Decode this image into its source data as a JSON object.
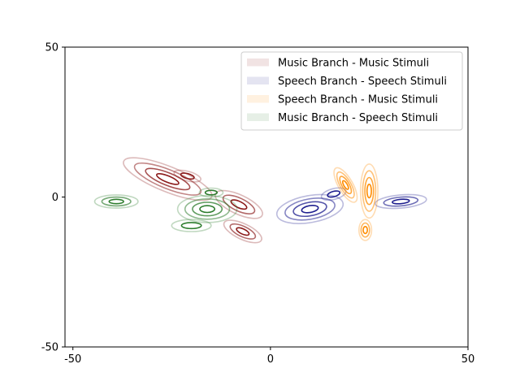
{
  "chart_data": {
    "type": "contour",
    "title": "",
    "xlabel": "",
    "ylabel": "",
    "xlim": [
      -52,
      50
    ],
    "ylim": [
      -50,
      50
    ],
    "xticks": [
      -50,
      0,
      50
    ],
    "yticks": [
      -50,
      0,
      50
    ],
    "xtick_labels": [
      "-50",
      "0",
      "50"
    ],
    "ytick_labels": [
      "-50",
      "0",
      "50"
    ],
    "grid": false,
    "legend_position": "top-right",
    "series": [
      {
        "name": "Music Branch - Music Stimuli",
        "color": "#8b1a1a",
        "clusters": [
          {
            "cx": -26,
            "cy": 6,
            "rx": 12,
            "ry": 4.2,
            "angle_deg": -22,
            "levels": 4
          },
          {
            "cx": -21,
            "cy": 7,
            "rx": 3.5,
            "ry": 1.6,
            "angle_deg": -15,
            "levels": 2
          },
          {
            "cx": -8,
            "cy": -2.5,
            "rx": 6.5,
            "ry": 3.2,
            "angle_deg": -25,
            "levels": 3
          },
          {
            "cx": -7,
            "cy": -11.5,
            "rx": 5.2,
            "ry": 2.6,
            "angle_deg": -25,
            "levels": 3
          }
        ]
      },
      {
        "name": "Speech Branch - Speech Stimuli",
        "color": "#1f1f8f",
        "clusters": [
          {
            "cx": 10,
            "cy": -4,
            "rx": 8.5,
            "ry": 4.5,
            "angle_deg": 10,
            "levels": 4
          },
          {
            "cx": 16,
            "cy": 1,
            "rx": 3.2,
            "ry": 1.8,
            "angle_deg": 15,
            "levels": 2
          },
          {
            "cx": 33,
            "cy": -1.5,
            "rx": 6.5,
            "ry": 2.2,
            "angle_deg": 5,
            "levels": 3
          }
        ]
      },
      {
        "name": "Speech Branch - Music Stimuli",
        "color": "#ff8c00",
        "clusters": [
          {
            "cx": 19,
            "cy": 4,
            "rx": 1.8,
            "ry": 6.5,
            "angle_deg": 30,
            "levels": 4
          },
          {
            "cx": 25,
            "cy": 2,
            "rx": 2.2,
            "ry": 9.0,
            "angle_deg": 0,
            "levels": 4
          },
          {
            "cx": 24,
            "cy": -11,
            "rx": 1.6,
            "ry": 3.5,
            "angle_deg": 0,
            "levels": 3
          }
        ]
      },
      {
        "name": "Music Branch - Speech Stimuli",
        "color": "#2e7d2e",
        "clusters": [
          {
            "cx": -39,
            "cy": -1.5,
            "rx": 5.5,
            "ry": 2.2,
            "angle_deg": 0,
            "levels": 3
          },
          {
            "cx": -16,
            "cy": -4,
            "rx": 7.5,
            "ry": 4.5,
            "angle_deg": 0,
            "levels": 4
          },
          {
            "cx": -20,
            "cy": -9.5,
            "rx": 5.0,
            "ry": 2.0,
            "angle_deg": 0,
            "levels": 2
          },
          {
            "cx": -15,
            "cy": 1.5,
            "rx": 3.0,
            "ry": 1.5,
            "angle_deg": 0,
            "levels": 2
          }
        ]
      }
    ]
  }
}
